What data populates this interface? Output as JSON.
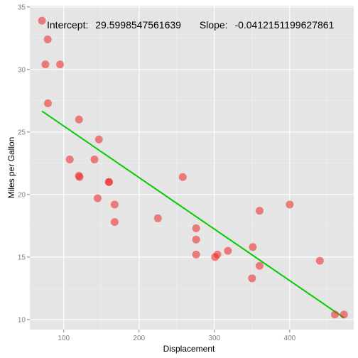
{
  "chart_data": {
    "type": "scatter",
    "xlabel": "Displacement",
    "ylabel": "Miles per Gallon",
    "xlim": [
      55,
      485
    ],
    "ylim": [
      9.2,
      35.1
    ],
    "x_ticks": [
      100,
      200,
      300,
      400
    ],
    "y_ticks": [
      10,
      15,
      20,
      25,
      30,
      35
    ],
    "grid": true,
    "annotation": {
      "intercept_label": "Intercept:",
      "intercept_value": "29.5998547561639",
      "slope_label": "Slope:",
      "slope_value": "-0.0412151199627861"
    },
    "regression": {
      "intercept": 29.5998547561639,
      "slope": -0.0412151199627861,
      "x_range": [
        71.1,
        472
      ]
    },
    "points": [
      {
        "x": 160,
        "y": 21.0
      },
      {
        "x": 160,
        "y": 21.0
      },
      {
        "x": 108,
        "y": 22.8
      },
      {
        "x": 258,
        "y": 21.4
      },
      {
        "x": 360,
        "y": 18.7
      },
      {
        "x": 225,
        "y": 18.1
      },
      {
        "x": 360,
        "y": 14.3
      },
      {
        "x": 146.7,
        "y": 24.4
      },
      {
        "x": 140.8,
        "y": 22.8
      },
      {
        "x": 167.6,
        "y": 19.2
      },
      {
        "x": 167.6,
        "y": 17.8
      },
      {
        "x": 275.8,
        "y": 16.4
      },
      {
        "x": 275.8,
        "y": 17.3
      },
      {
        "x": 275.8,
        "y": 15.2
      },
      {
        "x": 472,
        "y": 10.4
      },
      {
        "x": 460,
        "y": 10.4
      },
      {
        "x": 440,
        "y": 14.7
      },
      {
        "x": 78.7,
        "y": 32.4
      },
      {
        "x": 75.7,
        "y": 30.4
      },
      {
        "x": 71.1,
        "y": 33.9
      },
      {
        "x": 120.1,
        "y": 21.5
      },
      {
        "x": 318,
        "y": 15.5
      },
      {
        "x": 304,
        "y": 15.2
      },
      {
        "x": 350,
        "y": 13.3
      },
      {
        "x": 400,
        "y": 19.2
      },
      {
        "x": 79,
        "y": 27.3
      },
      {
        "x": 120.3,
        "y": 26.0
      },
      {
        "x": 95.1,
        "y": 30.4
      },
      {
        "x": 351,
        "y": 15.8
      },
      {
        "x": 145,
        "y": 19.7
      },
      {
        "x": 301,
        "y": 15.0
      },
      {
        "x": 121,
        "y": 21.4
      }
    ],
    "point_color": "#f8766d",
    "point_fill": "#ee2222",
    "line_color": "#00cc00",
    "panel_bg": "#e5e5e5"
  }
}
